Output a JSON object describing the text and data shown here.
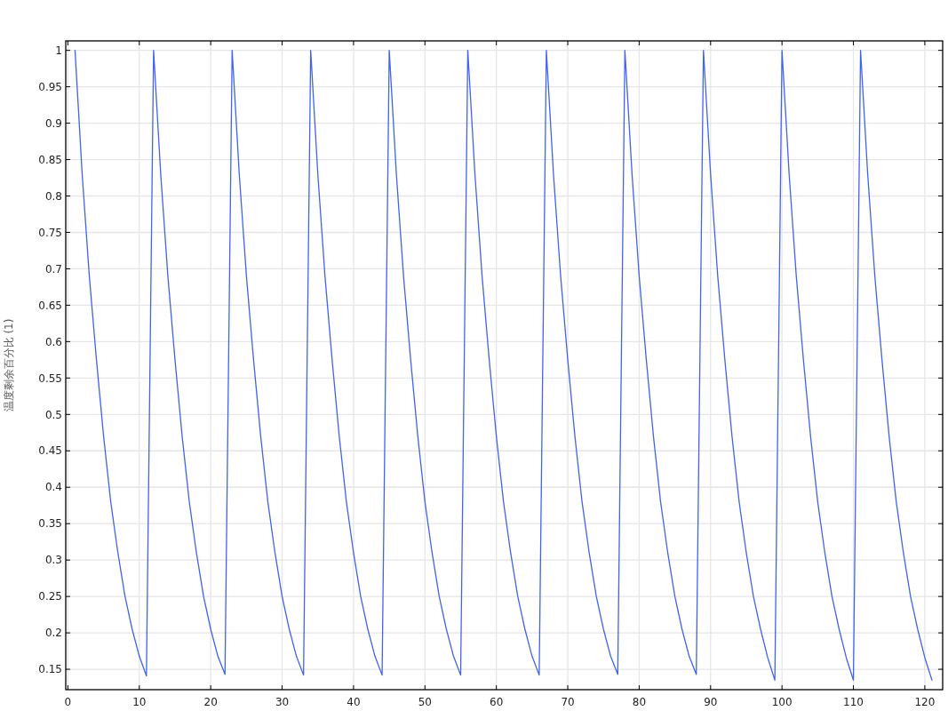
{
  "chart_data": {
    "type": "line",
    "ylabel": "温度剩余百分比 (1)",
    "x": [
      1,
      2,
      3,
      4,
      5,
      6,
      7,
      8,
      9,
      10,
      11,
      12,
      13,
      14,
      15,
      16,
      17,
      18,
      19,
      20,
      21,
      22,
      23,
      24,
      25,
      26,
      27,
      28,
      29,
      30,
      31,
      32,
      33,
      34,
      35,
      36,
      37,
      38,
      39,
      40,
      41,
      42,
      43,
      44,
      45,
      46,
      47,
      48,
      49,
      50,
      51,
      52,
      53,
      54,
      55,
      56,
      57,
      58,
      59,
      60,
      61,
      62,
      63,
      64,
      65,
      66,
      67,
      68,
      69,
      70,
      71,
      72,
      73,
      74,
      75,
      76,
      77,
      78,
      79,
      80,
      81,
      82,
      83,
      84,
      85,
      86,
      87,
      88,
      89,
      90,
      91,
      92,
      93,
      94,
      95,
      96,
      97,
      98,
      99,
      100,
      101,
      102,
      103,
      104,
      105,
      106,
      107,
      108,
      109,
      110,
      111,
      112,
      113,
      114,
      115,
      116,
      117,
      118,
      119,
      120,
      121
    ],
    "series": [
      {
        "color": "#4163ef",
        "values": [
          1,
          0.83,
          0.69,
          0.575,
          0.47,
          0.38,
          0.31,
          0.25,
          0.205,
          0.168,
          0.141,
          1,
          0.83,
          0.69,
          0.575,
          0.47,
          0.38,
          0.31,
          0.25,
          0.205,
          0.168,
          0.143,
          1,
          0.83,
          0.69,
          0.575,
          0.47,
          0.38,
          0.31,
          0.25,
          0.205,
          0.168,
          0.142,
          1,
          0.83,
          0.69,
          0.575,
          0.47,
          0.38,
          0.31,
          0.25,
          0.205,
          0.168,
          0.142,
          1,
          0.83,
          0.69,
          0.575,
          0.47,
          0.38,
          0.31,
          0.25,
          0.205,
          0.168,
          0.142,
          1,
          0.83,
          0.69,
          0.575,
          0.47,
          0.38,
          0.31,
          0.25,
          0.205,
          0.168,
          0.142,
          1,
          0.83,
          0.69,
          0.575,
          0.47,
          0.38,
          0.31,
          0.25,
          0.205,
          0.168,
          0.143,
          1,
          0.83,
          0.69,
          0.575,
          0.47,
          0.38,
          0.31,
          0.25,
          0.205,
          0.168,
          0.143,
          1,
          0.83,
          0.69,
          0.575,
          0.47,
          0.38,
          0.31,
          0.25,
          0.205,
          0.166,
          0.135,
          1,
          0.83,
          0.69,
          0.575,
          0.47,
          0.38,
          0.31,
          0.25,
          0.205,
          0.166,
          0.135,
          1,
          0.83,
          0.69,
          0.575,
          0.47,
          0.38,
          0.31,
          0.25,
          0.205,
          0.166,
          0.135
        ]
      }
    ],
    "xlim": [
      -0.3,
      122.5
    ],
    "ylim": [
      0.122,
      1.013
    ],
    "xticks": [
      0,
      10,
      20,
      30,
      40,
      50,
      60,
      70,
      80,
      90,
      100,
      110,
      120
    ],
    "yticks": [
      0.15,
      0.2,
      0.25,
      0.3,
      0.35,
      0.4,
      0.45,
      0.5,
      0.55,
      0.6,
      0.65,
      0.7,
      0.75,
      0.8,
      0.85,
      0.9,
      0.95,
      1
    ],
    "grid": true
  }
}
